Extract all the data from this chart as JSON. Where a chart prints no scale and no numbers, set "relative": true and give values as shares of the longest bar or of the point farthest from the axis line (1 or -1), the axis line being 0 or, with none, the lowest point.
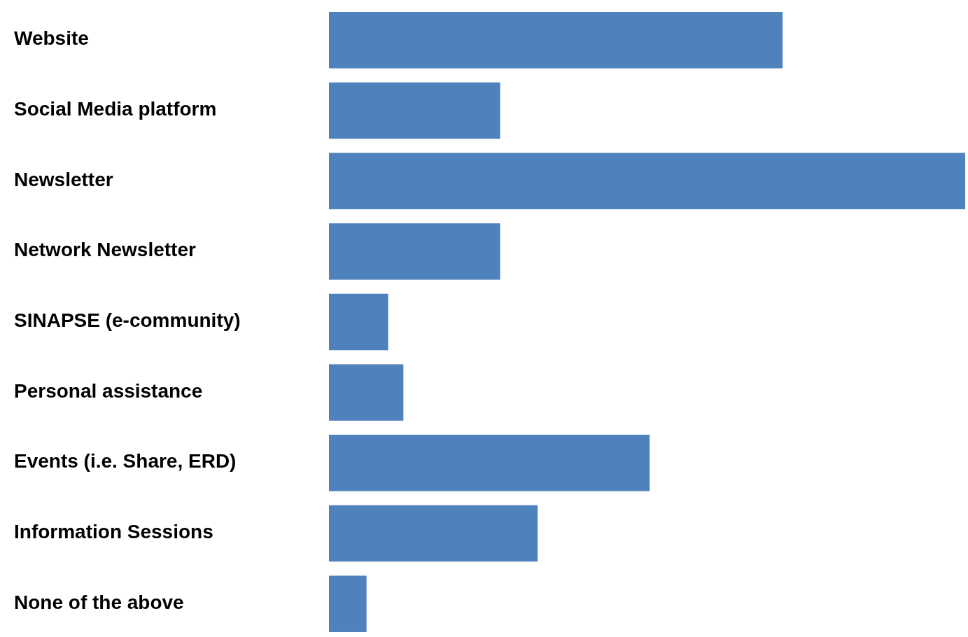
{
  "chart_data": {
    "type": "bar",
    "orientation": "horizontal",
    "relative": true,
    "color": "#4f81bd",
    "categories": [
      "Website",
      "Social Media platform",
      "Newsletter",
      "Network Newsletter",
      "SINAPSE (e-community)",
      "Personal assistance",
      "Events (i.e. Share, ERD)",
      "Information Sessions",
      "None of the above"
    ],
    "values": [
      0.713,
      0.269,
      1,
      0.269,
      0.093,
      0.117,
      0.504,
      0.328,
      0.059
    ]
  }
}
